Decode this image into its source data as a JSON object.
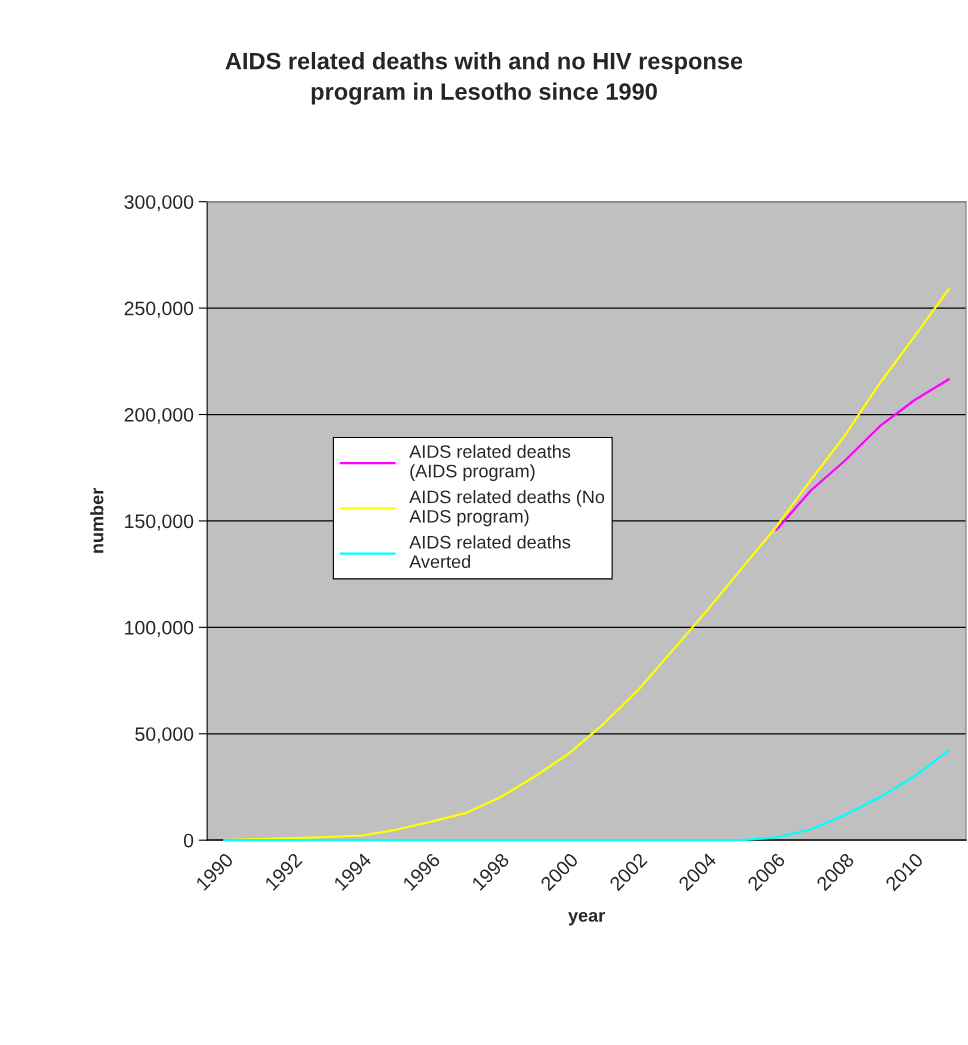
{
  "chart_data": {
    "type": "line",
    "title": "AIDS related deaths with and no HIV response\nprogram in Lesotho since 1990",
    "xlabel": "year",
    "ylabel": "number",
    "categories": [
      "1990",
      null,
      "1992",
      null,
      "1994",
      null,
      "1996",
      null,
      "1998",
      null,
      "2000",
      null,
      "2002",
      null,
      "2004",
      null,
      "2006",
      null,
      "2008",
      null,
      "2010",
      null
    ],
    "series": [
      {
        "name": "AIDS related deaths\n(AIDS program)",
        "color": "#ff00ff",
        "values": [
          null,
          null,
          null,
          null,
          null,
          null,
          null,
          null,
          null,
          null,
          null,
          null,
          null,
          null,
          null,
          null,
          145800,
          164300,
          178500,
          194500,
          206700,
          216600
        ]
      },
      {
        "name": "AIDS related deaths (No\nAIDS program)",
        "color": "#ffff00",
        "values": [
          0,
          500,
          1000,
          1500,
          2200,
          5000,
          8700,
          12800,
          20200,
          29900,
          40900,
          54800,
          70700,
          89300,
          108100,
          127700,
          147300,
          169300,
          190400,
          214700,
          236600,
          258900
        ]
      },
      {
        "name": "AIDS related deaths\nAverted",
        "color": "#00ffff",
        "values": [
          0,
          0,
          0,
          0,
          0,
          0,
          0,
          0,
          0,
          0,
          0,
          0,
          0,
          0,
          0,
          0,
          1300,
          5000,
          11900,
          20200,
          29900,
          42300
        ]
      }
    ],
    "ylim": [
      0,
      300000
    ],
    "yticks": [
      {
        "value": 0,
        "label": "0"
      },
      {
        "value": 50000,
        "label": "50,000"
      },
      {
        "value": 100000,
        "label": "100,000"
      },
      {
        "value": 150000,
        "label": "150,000"
      },
      {
        "value": 200000,
        "label": "200,000"
      },
      {
        "value": 250000,
        "label": "250,000"
      },
      {
        "value": 300000,
        "label": "300,000"
      }
    ],
    "grid": "y",
    "legend": "center",
    "marker": "none",
    "line_style": "solid"
  }
}
